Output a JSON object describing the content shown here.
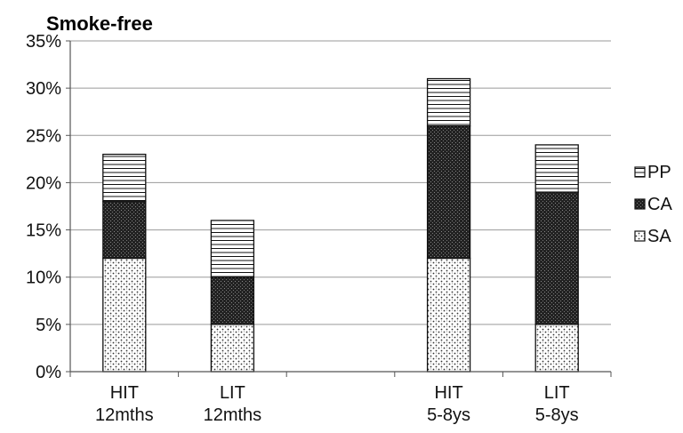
{
  "chart_data": {
    "type": "bar",
    "stacked": true,
    "title": "Smoke-free",
    "xlabel": "",
    "ylabel": "",
    "ylim": [
      0,
      35
    ],
    "y_ticks": [
      "0%",
      "5%",
      "10%",
      "15%",
      "20%",
      "25%",
      "30%",
      "35%"
    ],
    "grid": true,
    "legend_position": "right",
    "categories": [
      {
        "line1": "HIT",
        "line2": "12mths"
      },
      {
        "line1": "LIT",
        "line2": "12mths"
      },
      {
        "line1": "",
        "line2": ""
      },
      {
        "line1": "HIT",
        "line2": "5-8ys"
      },
      {
        "line1": "LIT",
        "line2": "5-8ys"
      }
    ],
    "series": [
      {
        "name": "SA",
        "values": [
          12,
          5,
          null,
          12,
          5
        ],
        "pattern": "dots"
      },
      {
        "name": "CA",
        "values": [
          6,
          5,
          null,
          14,
          14
        ],
        "pattern": "dense"
      },
      {
        "name": "PP",
        "values": [
          5,
          6,
          null,
          5,
          5
        ],
        "pattern": "hlines"
      }
    ],
    "legend_order": [
      "PP",
      "CA",
      "SA"
    ]
  }
}
